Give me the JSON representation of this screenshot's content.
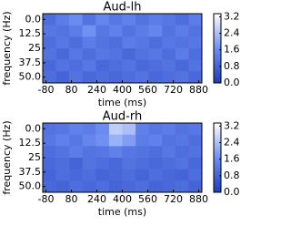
{
  "chart_data": [
    {
      "type": "heatmap",
      "title": "Aud-lh",
      "x_label": "time (ms)",
      "y_label": "frequency (Hz)",
      "xlim": [
        -100,
        900
      ],
      "ylim": [
        -5,
        55
      ],
      "y_inverted": true,
      "xticks": [
        -80,
        80,
        240,
        400,
        560,
        720,
        880
      ],
      "yticks": [
        {
          "value": 0,
          "label": "0.0"
        },
        12.5,
        25.0,
        37.5,
        {
          "value": 50,
          "label": "50.0"
        }
      ],
      "clim": [
        0,
        3.35
      ],
      "colormap": [
        "#1c3cc0",
        "#6f8ff2",
        "#ffffff"
      ],
      "cticks": [
        {
          "value": 0,
          "label": "0.0"
        },
        0.8,
        1.6,
        2.4,
        3.2
      ],
      "values": [
        [
          1.0,
          1.3,
          1.6,
          1.1,
          1.5,
          1.2,
          1.4,
          1.1,
          1.3,
          1.2,
          1.0,
          1.3
        ],
        [
          1.2,
          1.1,
          1.3,
          1.7,
          1.2,
          1.4,
          1.1,
          1.3,
          1.5,
          1.1,
          1.3,
          1.1
        ],
        [
          1.0,
          1.2,
          1.0,
          1.3,
          1.1,
          1.0,
          1.3,
          1.2,
          1.0,
          1.2,
          1.1,
          1.2
        ],
        [
          1.1,
          0.9,
          1.2,
          1.0,
          1.2,
          1.1,
          0.9,
          1.1,
          1.2,
          1.0,
          1.3,
          1.0
        ],
        [
          0.9,
          1.1,
          1.0,
          1.2,
          0.9,
          1.0,
          1.1,
          0.9,
          1.0,
          1.1,
          0.9,
          1.1
        ],
        [
          1.0,
          0.8,
          1.1,
          0.9,
          1.0,
          0.9,
          1.0,
          1.1,
          0.9,
          1.0,
          1.1,
          0.9
        ]
      ]
    },
    {
      "type": "heatmap",
      "title": "Aud-rh",
      "x_label": "time (ms)",
      "y_label": "frequency (Hz)",
      "xlim": [
        -100,
        900
      ],
      "ylim": [
        -5,
        55
      ],
      "y_inverted": true,
      "xticks": [
        -80,
        80,
        240,
        400,
        560,
        720,
        880
      ],
      "yticks": [
        {
          "value": 0,
          "label": "0.0"
        },
        12.5,
        25.0,
        37.5,
        {
          "value": 50,
          "label": "50.0"
        }
      ],
      "clim": [
        0,
        3.35
      ],
      "colormap": [
        "#1c3cc0",
        "#6f8ff2",
        "#ffffff"
      ],
      "cticks": [
        {
          "value": 0,
          "label": "0.0"
        },
        0.8,
        1.6,
        2.4,
        3.2
      ],
      "values": [
        [
          1.1,
          1.2,
          1.4,
          1.3,
          1.6,
          2.6,
          2.4,
          1.4,
          1.2,
          1.3,
          1.1,
          1.2
        ],
        [
          1.2,
          1.4,
          1.2,
          1.5,
          1.7,
          2.2,
          1.9,
          1.3,
          1.4,
          1.1,
          1.2,
          1.0
        ],
        [
          1.0,
          1.1,
          1.3,
          1.1,
          1.2,
          1.4,
          1.2,
          1.1,
          1.0,
          1.2,
          1.0,
          1.1
        ],
        [
          0.9,
          1.0,
          0.8,
          1.1,
          1.0,
          0.9,
          1.1,
          1.0,
          0.9,
          1.0,
          1.1,
          0.9
        ],
        [
          0.8,
          1.0,
          0.9,
          1.0,
          0.8,
          0.9,
          1.0,
          0.8,
          1.0,
          0.9,
          0.8,
          1.0
        ],
        [
          0.9,
          0.8,
          1.0,
          0.9,
          1.0,
          0.8,
          0.9,
          1.0,
          0.8,
          0.9,
          1.0,
          0.8
        ]
      ]
    }
  ]
}
